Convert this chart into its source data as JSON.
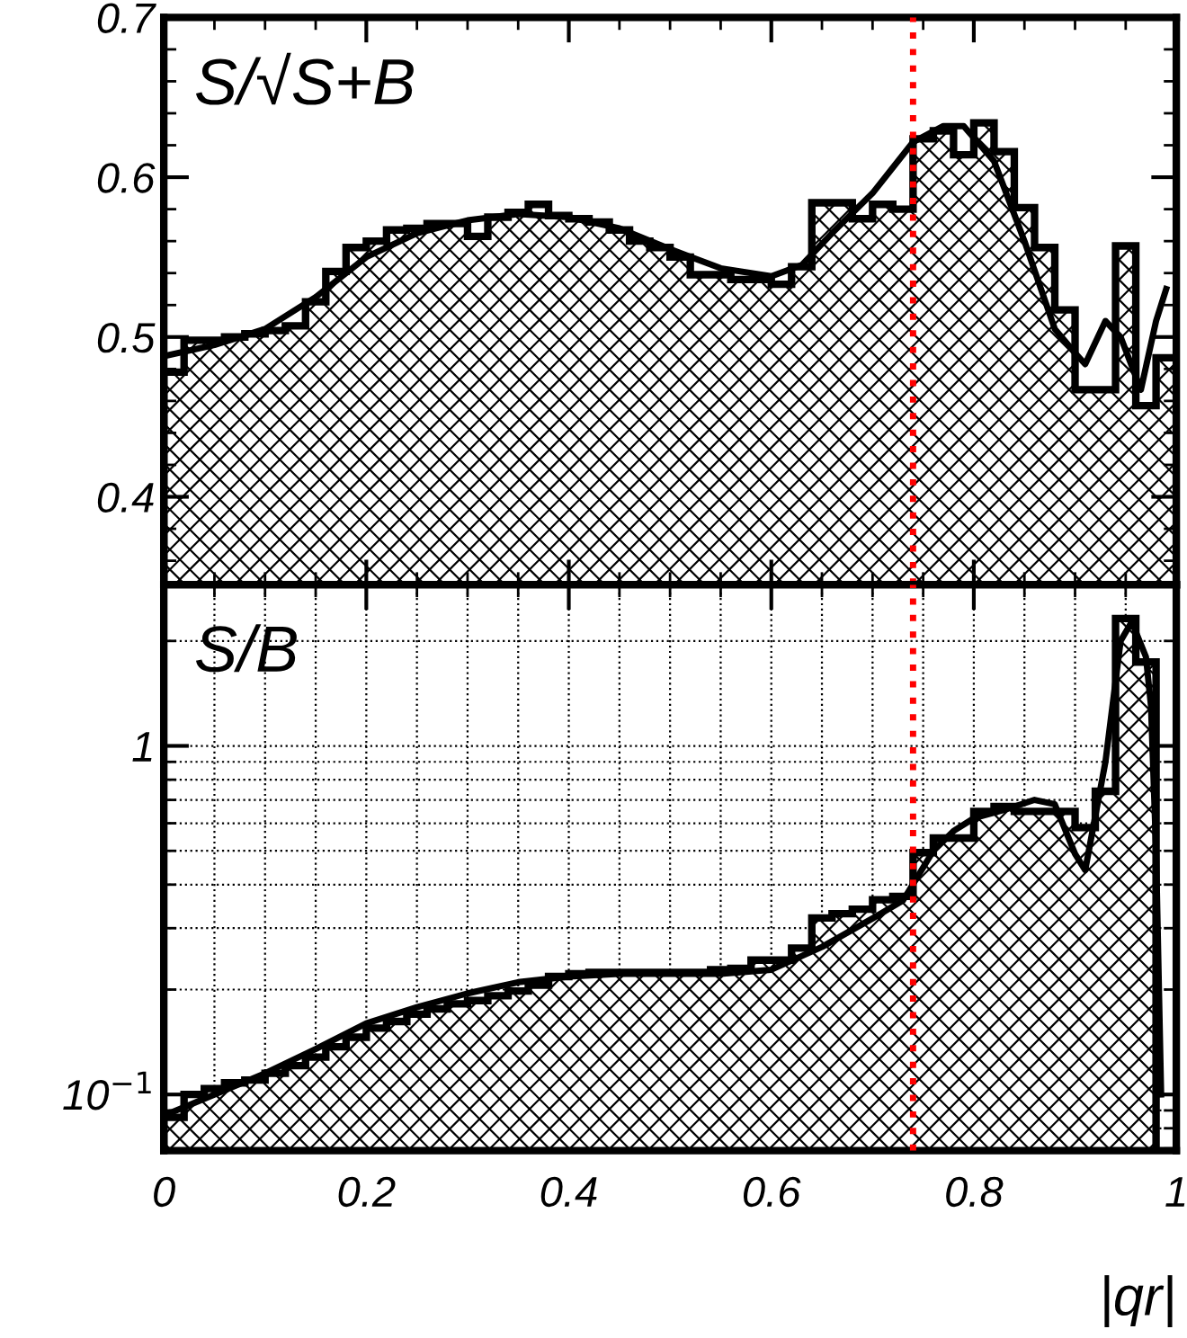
{
  "chart_data": [
    {
      "type": "histogram",
      "title": "S/√S+B",
      "tick_labels": "y",
      "xlim": [
        0,
        1
      ],
      "ylim": [
        0.345,
        0.7
      ],
      "yticks": [
        0.4,
        0.5,
        0.6,
        0.7
      ],
      "grid": false,
      "series": [
        {
          "color": "#000000",
          "bins": [
            0,
            0.02,
            0.04,
            0.06,
            0.08,
            0.1,
            0.12,
            0.14,
            0.16,
            0.18,
            0.2,
            0.22,
            0.24,
            0.26,
            0.28,
            0.3,
            0.32,
            0.34,
            0.36,
            0.38,
            0.4,
            0.42,
            0.44,
            0.46,
            0.48,
            0.5,
            0.52,
            0.54,
            0.56,
            0.58,
            0.6,
            0.62,
            0.64,
            0.66,
            0.68,
            0.7,
            0.72,
            0.74,
            0.76,
            0.78,
            0.8,
            0.82,
            0.84,
            0.86,
            0.88,
            0.9,
            0.92,
            0.94,
            0.96,
            0.98,
            1.0
          ],
          "values": [
            0.478,
            0.498,
            0.498,
            0.5,
            0.502,
            0.504,
            0.507,
            0.522,
            0.541,
            0.556,
            0.56,
            0.567,
            0.568,
            0.571,
            0.571,
            0.563,
            0.575,
            0.578,
            0.583,
            0.576,
            0.574,
            0.572,
            0.567,
            0.56,
            0.556,
            0.55,
            0.539,
            0.539,
            0.536,
            0.536,
            0.533,
            0.544,
            0.584,
            0.584,
            0.574,
            0.583,
            0.58,
            0.624,
            0.629,
            0.614,
            0.634,
            0.616,
            0.581,
            0.556,
            0.517,
            0.467,
            0.467,
            0.557,
            0.457,
            0.487
          ]
        },
        {
          "type": "line",
          "color": "#000000",
          "x": [
            0,
            0.05,
            0.1,
            0.15,
            0.2,
            0.25,
            0.3,
            0.35,
            0.4,
            0.45,
            0.5,
            0.55,
            0.6,
            0.63,
            0.66,
            0.7,
            0.74,
            0.77,
            0.79,
            0.82,
            0.85,
            0.88,
            0.9,
            0.91,
            0.93,
            0.945,
            0.965,
            0.98,
            0.99
          ],
          "values": [
            0.488,
            0.495,
            0.505,
            0.525,
            0.55,
            0.565,
            0.573,
            0.577,
            0.575,
            0.568,
            0.555,
            0.543,
            0.538,
            0.545,
            0.565,
            0.59,
            0.622,
            0.632,
            0.632,
            0.61,
            0.56,
            0.505,
            0.49,
            0.483,
            0.51,
            0.5,
            0.467,
            0.51,
            0.53
          ]
        }
      ],
      "ref_lines": [
        {
          "axis": "x",
          "value": 0.74,
          "color": "#ff0000",
          "line_style": "dotted"
        }
      ]
    },
    {
      "type": "histogram",
      "title": "S/B",
      "xlabel": "|qr|",
      "log": "y",
      "xlim": [
        0,
        1
      ],
      "xticks": [
        0,
        0.2,
        0.4,
        0.6,
        0.8,
        1
      ],
      "ylim": [
        0.069,
        2.9
      ],
      "yticks": [
        {
          "value": 0.1,
          "label": "10$^{−1}$"
        },
        1
      ],
      "grid": true,
      "series": [
        {
          "color": "#000000",
          "bins": [
            0,
            0.02,
            0.04,
            0.06,
            0.08,
            0.1,
            0.12,
            0.14,
            0.16,
            0.18,
            0.2,
            0.22,
            0.24,
            0.26,
            0.28,
            0.3,
            0.32,
            0.34,
            0.36,
            0.38,
            0.4,
            0.42,
            0.44,
            0.46,
            0.48,
            0.5,
            0.52,
            0.54,
            0.56,
            0.58,
            0.6,
            0.62,
            0.64,
            0.66,
            0.68,
            0.7,
            0.72,
            0.74,
            0.76,
            0.78,
            0.8,
            0.82,
            0.84,
            0.86,
            0.88,
            0.9,
            0.92,
            0.94,
            0.96,
            0.98
          ],
          "values": [
            0.086,
            0.1,
            0.104,
            0.108,
            0.11,
            0.115,
            0.121,
            0.128,
            0.137,
            0.146,
            0.155,
            0.162,
            0.17,
            0.176,
            0.182,
            0.186,
            0.192,
            0.198,
            0.206,
            0.218,
            0.222,
            0.224,
            0.224,
            0.224,
            0.224,
            0.224,
            0.224,
            0.228,
            0.23,
            0.243,
            0.243,
            0.263,
            0.321,
            0.33,
            0.34,
            0.362,
            0.37,
            0.494,
            0.544,
            0.544,
            0.649,
            0.67,
            0.649,
            0.649,
            0.649,
            0.583,
            0.741,
            2.32,
            1.74
          ]
        },
        {
          "type": "line",
          "color": "#000000",
          "x": [
            0,
            0.05,
            0.1,
            0.15,
            0.2,
            0.25,
            0.3,
            0.35,
            0.4,
            0.45,
            0.5,
            0.55,
            0.6,
            0.65,
            0.7,
            0.73,
            0.76,
            0.78,
            0.8,
            0.83,
            0.86,
            0.88,
            0.9,
            0.91,
            0.93,
            0.945,
            0.956,
            0.97,
            0.975,
            0.98,
            0.985
          ],
          "values": [
            0.087,
            0.1,
            0.115,
            0.135,
            0.16,
            0.178,
            0.195,
            0.21,
            0.218,
            0.222,
            0.222,
            0.222,
            0.228,
            0.265,
            0.32,
            0.36,
            0.5,
            0.57,
            0.62,
            0.655,
            0.7,
            0.68,
            0.49,
            0.44,
            0.9,
            2.0,
            2.27,
            1.8,
            1.3,
            0.5,
            0.1
          ]
        }
      ],
      "ref_lines": [
        {
          "axis": "x",
          "value": 0.74,
          "color": "#ff0000",
          "line_style": "dotted"
        }
      ]
    }
  ]
}
